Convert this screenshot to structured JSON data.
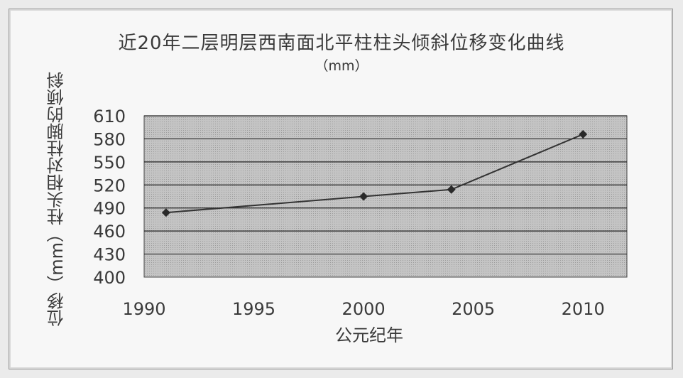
{
  "chart_data": {
    "type": "line",
    "title": "近20年二层明层西南面北平柱柱头倾斜位移变化曲线",
    "subtitle": "（mm）",
    "xlabel": "公元纪年",
    "ylabel": [
      "柱头相对柱脚的倾斜",
      "位移（mm）"
    ],
    "xlim": [
      1990,
      2012
    ],
    "ylim": [
      400,
      610
    ],
    "x_ticks": [
      1990,
      1995,
      2000,
      2005,
      2010
    ],
    "y_ticks": [
      400,
      430,
      460,
      490,
      520,
      550,
      580,
      610
    ],
    "grid": true,
    "series": [
      {
        "x": [
          1991,
          2000,
          2004,
          2010
        ],
        "values": [
          484,
          505,
          514,
          586
        ]
      }
    ],
    "colors": {
      "plot_bg": "#bdbdbd",
      "line": "#333333",
      "grid": "#222222"
    }
  }
}
